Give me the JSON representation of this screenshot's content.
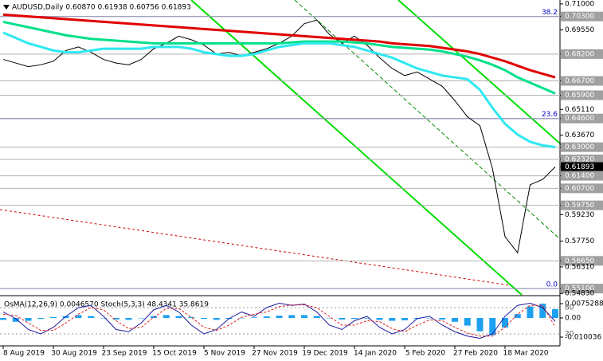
{
  "chart_data": [
    {
      "type": "line",
      "title": "AUDUSD,Daily  0.60870 0.61938 0.60756 0.61893",
      "categories": [
        "8 Aug 2019",
        null,
        null,
        null,
        "30 Aug 2019",
        null,
        null,
        null,
        "23 Sep 2019",
        null,
        null,
        null,
        "15 Oct 2019",
        null,
        null,
        null,
        "5 Nov 2019",
        null,
        null,
        null,
        "27 Nov 2019",
        null,
        null,
        null,
        "19 Dec 2019",
        null,
        null,
        null,
        "14 Jan 2020",
        null,
        null,
        null,
        "5 Feb 2020",
        null,
        null,
        null,
        "27 Feb 2020",
        null,
        null,
        null,
        "18 Mar 2020",
        null,
        null,
        null,
        null
      ],
      "series": [
        {
          "color": "#000000",
          "values": [
            0.679,
            0.677,
            0.675,
            0.676,
            0.678,
            0.684,
            0.686,
            0.683,
            0.679,
            0.677,
            0.676,
            0.679,
            0.685,
            0.688,
            0.692,
            0.69,
            0.687,
            0.682,
            0.683,
            0.681,
            0.683,
            0.685,
            0.688,
            0.692,
            0.699,
            0.701,
            0.693,
            0.688,
            0.692,
            0.687,
            0.68,
            0.674,
            0.67,
            0.672,
            0.668,
            0.664,
            0.656,
            0.647,
            0.642,
            0.618,
            0.58,
            0.571,
            0.609,
            0.612,
            0.61893
          ]
        },
        {
          "color": "#e00000",
          "values": [
            0.704,
            0.7035,
            0.703,
            0.7025,
            0.702,
            0.7015,
            0.701,
            0.7005,
            0.7,
            0.6995,
            0.699,
            0.6985,
            0.698,
            0.6975,
            0.697,
            0.6965,
            0.696,
            0.6955,
            0.695,
            0.6945,
            0.694,
            0.6935,
            0.693,
            0.6925,
            0.692,
            0.6915,
            0.691,
            0.6905,
            0.69,
            0.6895,
            0.689,
            0.688,
            0.6875,
            0.687,
            0.6865,
            0.6855,
            0.6845,
            0.6835,
            0.682,
            0.68,
            0.678,
            0.6755,
            0.673,
            0.671,
            0.669
          ]
        },
        {
          "color": "#00e08a",
          "values": [
            0.7,
            0.6985,
            0.697,
            0.6955,
            0.694,
            0.6925,
            0.6915,
            0.6905,
            0.69,
            0.6895,
            0.689,
            0.6885,
            0.688,
            0.688,
            0.688,
            0.688,
            0.688,
            0.688,
            0.688,
            0.688,
            0.688,
            0.688,
            0.688,
            0.6885,
            0.689,
            0.689,
            0.689,
            0.689,
            0.6885,
            0.688,
            0.687,
            0.686,
            0.6855,
            0.685,
            0.6845,
            0.6835,
            0.682,
            0.6805,
            0.6785,
            0.676,
            0.673,
            0.669,
            0.666,
            0.663,
            0.66
          ]
        },
        {
          "color": "#2ee8f0",
          "values": [
            0.694,
            0.691,
            0.688,
            0.686,
            0.684,
            0.683,
            0.683,
            0.684,
            0.685,
            0.685,
            0.685,
            0.685,
            0.686,
            0.686,
            0.686,
            0.685,
            0.683,
            0.682,
            0.681,
            0.681,
            0.682,
            0.684,
            0.686,
            0.687,
            0.688,
            0.688,
            0.688,
            0.687,
            0.686,
            0.684,
            0.682,
            0.68,
            0.677,
            0.674,
            0.672,
            0.67,
            0.669,
            0.668,
            0.662,
            0.652,
            0.643,
            0.637,
            0.633,
            0.631,
            0.63
          ]
        }
      ],
      "ylim": [
        0.5475,
        0.7122
      ],
      "yticks": [
        {
          "value": 0.71,
          "label": "0.71000"
        },
        {
          "value": 0.703,
          "label": "0.70300",
          "style": "level"
        },
        {
          "value": 0.6955,
          "label": "0.69550"
        },
        {
          "value": 0.682,
          "label": "0.68200",
          "style": "level"
        },
        {
          "value": 0.667,
          "label": "0.66700",
          "style": "level"
        },
        {
          "value": 0.659,
          "label": "0.65900",
          "style": "level"
        },
        {
          "value": 0.6511,
          "label": "0.65110"
        },
        {
          "value": 0.646,
          "label": "0.64600",
          "style": "level"
        },
        {
          "value": 0.6367,
          "label": "0.63670"
        },
        {
          "value": 0.63,
          "label": "0.63000",
          "style": "level"
        },
        {
          "value": 0.6232,
          "label": "0.62320",
          "style": "level"
        },
        {
          "value": 0.61893,
          "label": "0.61893",
          "style": "current"
        },
        {
          "value": 0.614,
          "label": "0.61400",
          "style": "level"
        },
        {
          "value": 0.607,
          "label": "0.60700",
          "style": "level"
        },
        {
          "value": 0.5975,
          "label": "0.59750",
          "style": "level"
        },
        {
          "value": 0.5923,
          "label": "0.59230"
        },
        {
          "value": 0.5775,
          "label": "0.57750"
        },
        {
          "value": 0.5665,
          "label": "0.56650",
          "style": "level"
        },
        {
          "value": 0.5631,
          "label": "0.56310"
        },
        {
          "value": 0.551,
          "label": "0.55100",
          "style": "level"
        },
        {
          "value": 0.5483,
          "label": "0.54830"
        }
      ],
      "fib_levels": [
        {
          "value": 0.703,
          "label": "38.2"
        },
        {
          "value": 0.646,
          "label": "23.6"
        },
        {
          "value": 0.551,
          "label": "0.0"
        }
      ],
      "fib_color": "#0000c8"
    },
    {
      "type": "oscillator",
      "title": "OsMA(12,26,9) 0.0046570  Stoch(5,3,3) 48.4341 35.8619",
      "ylim": [
        -0.01464,
        0.01087
      ],
      "yticks": [
        0.0075288,
        {
          "value": 0,
          "label": "0.00"
        },
        -0.010036
      ],
      "y2lim": [
        -7.3,
        103.6
      ],
      "y2ticks": [
        80,
        20
      ],
      "series": [
        {
          "type": "bar",
          "color": "#1ea0f0",
          "values": [
            -0.001,
            -0.002,
            -0.0015,
            -0.0005,
            0.0005,
            0.001,
            0.0015,
            0.001,
            0,
            -0.0008,
            -0.001,
            0,
            0.001,
            0.0015,
            0.001,
            0.0005,
            -0.0005,
            -0.001,
            -0.0005,
            0,
            0.0003,
            0.0008,
            0.0012,
            0.0015,
            0.0015,
            0.001,
            0,
            -0.0008,
            -0.0005,
            -0.0003,
            -0.001,
            -0.0015,
            -0.0012,
            -0.0005,
            0,
            -0.0008,
            -0.002,
            -0.004,
            -0.007,
            -0.009,
            -0.005,
            0.002,
            0.006,
            0.0075,
            0.004657
          ]
        },
        {
          "type": "line",
          "axis": "y2",
          "color": "#1a1aa0",
          "values": [
            70,
            55,
            30,
            20,
            35,
            60,
            80,
            85,
            60,
            30,
            25,
            45,
            75,
            85,
            70,
            40,
            20,
            30,
            55,
            70,
            60,
            80,
            90,
            85,
            88,
            70,
            40,
            30,
            50,
            60,
            35,
            20,
            30,
            55,
            60,
            40,
            25,
            15,
            10,
            20,
            60,
            85,
            90,
            80,
            48.4341
          ]
        },
        {
          "type": "line",
          "axis": "y2",
          "color": "#e02020",
          "dashed": true,
          "values": [
            65,
            62,
            45,
            28,
            28,
            45,
            65,
            80,
            75,
            50,
            32,
            35,
            58,
            78,
            78,
            58,
            35,
            28,
            40,
            58,
            65,
            70,
            82,
            86,
            86,
            80,
            60,
            40,
            40,
            50,
            48,
            32,
            25,
            40,
            52,
            50,
            35,
            22,
            15,
            15,
            35,
            65,
            85,
            85,
            35.8619
          ]
        }
      ]
    }
  ]
}
